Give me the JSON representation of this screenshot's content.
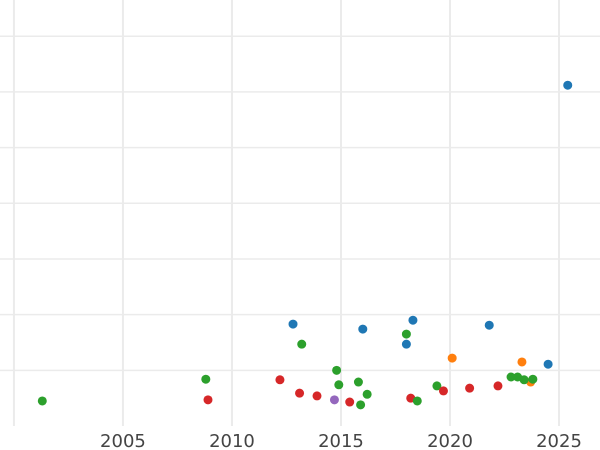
{
  "chart_data": {
    "type": "scatter",
    "title": "",
    "xlabel": "",
    "ylabel": "",
    "xlim": [
      1999.36,
      2026.88
    ],
    "ylim": [
      0,
      7.65
    ],
    "grid": true,
    "legend": "none",
    "x_ticks": [
      2000,
      2005,
      2010,
      2015,
      2020,
      2025
    ],
    "x_tick_labels": [
      "",
      "2005",
      "2010",
      "2015",
      "2020",
      "2025"
    ],
    "y_gridlines": [
      1,
      2,
      3,
      4,
      5,
      6,
      7
    ],
    "colors": {
      "blue": "#1f77b4",
      "orange": "#ff7f0e",
      "green": "#2ca02c",
      "red": "#d62728",
      "purple": "#9467bd"
    },
    "points": [
      {
        "x": 2001.3,
        "y": 0.45,
        "c": "green"
      },
      {
        "x": 2008.8,
        "y": 0.84,
        "c": "green"
      },
      {
        "x": 2008.9,
        "y": 0.47,
        "c": "red"
      },
      {
        "x": 2012.2,
        "y": 0.83,
        "c": "red"
      },
      {
        "x": 2012.8,
        "y": 1.83,
        "c": "blue"
      },
      {
        "x": 2013.2,
        "y": 1.47,
        "c": "green"
      },
      {
        "x": 2013.1,
        "y": 0.59,
        "c": "red"
      },
      {
        "x": 2013.9,
        "y": 0.54,
        "c": "red"
      },
      {
        "x": 2014.7,
        "y": 0.47,
        "c": "purple"
      },
      {
        "x": 2014.8,
        "y": 1.0,
        "c": "green"
      },
      {
        "x": 2014.9,
        "y": 0.74,
        "c": "green"
      },
      {
        "x": 2015.4,
        "y": 0.43,
        "c": "red"
      },
      {
        "x": 2016.0,
        "y": 1.74,
        "c": "blue"
      },
      {
        "x": 2015.8,
        "y": 0.79,
        "c": "green"
      },
      {
        "x": 2016.2,
        "y": 0.57,
        "c": "green"
      },
      {
        "x": 2015.9,
        "y": 0.38,
        "c": "green"
      },
      {
        "x": 2018.0,
        "y": 1.65,
        "c": "green"
      },
      {
        "x": 2018.0,
        "y": 1.47,
        "c": "blue"
      },
      {
        "x": 2018.3,
        "y": 1.9,
        "c": "blue"
      },
      {
        "x": 2018.2,
        "y": 0.5,
        "c": "red"
      },
      {
        "x": 2018.5,
        "y": 0.45,
        "c": "green"
      },
      {
        "x": 2019.4,
        "y": 0.72,
        "c": "green"
      },
      {
        "x": 2019.7,
        "y": 0.63,
        "c": "red"
      },
      {
        "x": 2020.1,
        "y": 1.22,
        "c": "orange"
      },
      {
        "x": 2020.9,
        "y": 0.68,
        "c": "red"
      },
      {
        "x": 2021.8,
        "y": 1.81,
        "c": "blue"
      },
      {
        "x": 2022.2,
        "y": 0.72,
        "c": "red"
      },
      {
        "x": 2022.8,
        "y": 0.88,
        "c": "green"
      },
      {
        "x": 2023.1,
        "y": 0.88,
        "c": "green"
      },
      {
        "x": 2023.3,
        "y": 1.15,
        "c": "orange"
      },
      {
        "x": 2023.7,
        "y": 0.79,
        "c": "orange"
      },
      {
        "x": 2023.4,
        "y": 0.83,
        "c": "green"
      },
      {
        "x": 2023.8,
        "y": 0.84,
        "c": "green"
      },
      {
        "x": 2024.5,
        "y": 1.11,
        "c": "blue"
      },
      {
        "x": 2025.4,
        "y": 6.12,
        "c": "blue"
      }
    ]
  }
}
